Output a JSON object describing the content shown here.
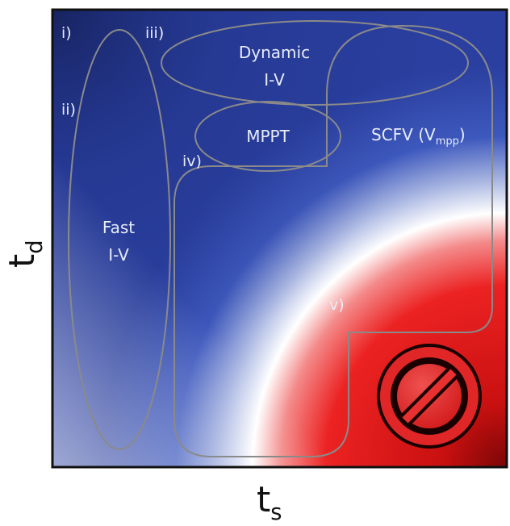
{
  "regions": {
    "fast_iv": {
      "marker": "i)",
      "line1": "Fast",
      "line2": "I-V"
    },
    "marker_ii": "ii)",
    "dynamic_iv": {
      "marker": "iii)",
      "line1": "Dynamic",
      "line2": "I-V"
    },
    "mppt": {
      "marker": "iv)",
      "label": "MPPT"
    },
    "scfv": {
      "label_main": "SCFV (V",
      "label_sub": "mpp",
      "label_close": ")"
    },
    "forbidden": {
      "marker": "v)",
      "icon": "prohibited-icon"
    }
  },
  "axes": {
    "y_main": "t",
    "y_sub": "d",
    "x_main": "t",
    "x_sub": "s"
  },
  "colors": {
    "fast_region": "#1f3d9c",
    "slow_region": "#e81e1e",
    "transition": "#ffffff",
    "outline": "#8a8a8a",
    "frame": "#111111"
  }
}
